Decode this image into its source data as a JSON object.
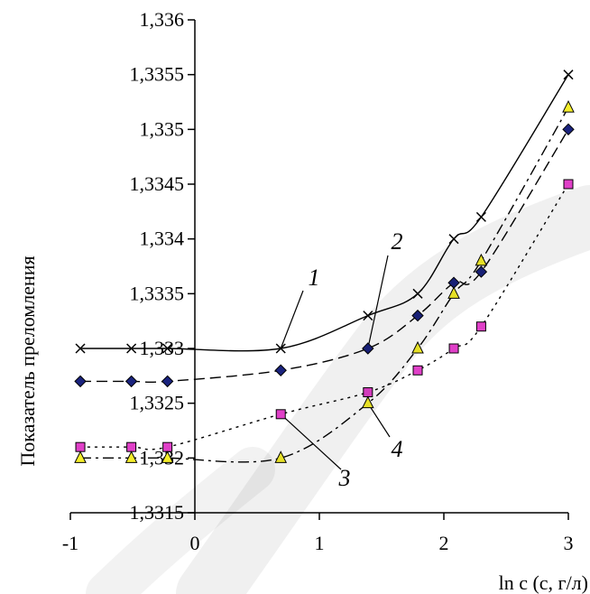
{
  "chart_data": {
    "type": "line",
    "title": "",
    "xlabel": "ln c (c, г/л)",
    "ylabel": "Показатель преломления",
    "xlim": [
      -1,
      3
    ],
    "ylim": [
      1.3315,
      1.336
    ],
    "x_ticks": [
      -1,
      0,
      1,
      2,
      3
    ],
    "x_tick_labels": [
      "-1",
      "0",
      "1",
      "2",
      "3"
    ],
    "y_ticks": [
      1.3315,
      1.332,
      1.3325,
      1.333,
      1.3335,
      1.334,
      1.3345,
      1.335,
      1.3355,
      1.336
    ],
    "y_tick_labels": [
      "1,3315",
      "1,332",
      "1,3325",
      "1,333",
      "1,3335",
      "1,334",
      "1,3345",
      "1,335",
      "1,3355",
      "1,336"
    ],
    "grid": false,
    "series": [
      {
        "name": "1",
        "marker": "x",
        "line_style": "solid",
        "marker_color": "#000000",
        "x": [
          -0.92,
          -0.51,
          -0.22,
          0.69,
          1.39,
          1.79,
          2.08,
          2.3,
          3.0
        ],
        "y": [
          1.333,
          1.333,
          1.333,
          1.333,
          1.3333,
          1.3335,
          1.334,
          1.3342,
          1.3355
        ]
      },
      {
        "name": "2",
        "marker": "diamond",
        "line_style": "dashed",
        "marker_color": "#1a237e",
        "x": [
          -0.92,
          -0.51,
          -0.22,
          0.69,
          1.39,
          1.79,
          2.08,
          2.3,
          3.0
        ],
        "y": [
          1.3327,
          1.3327,
          1.3327,
          1.3328,
          1.333,
          1.3333,
          1.3336,
          1.3337,
          1.335
        ]
      },
      {
        "name": "3",
        "marker": "square",
        "line_style": "dotted",
        "marker_color": "#e040c8",
        "x": [
          -0.92,
          -0.51,
          -0.22,
          0.69,
          1.39,
          1.79,
          2.08,
          2.3,
          3.0
        ],
        "y": [
          1.3321,
          1.3321,
          1.3321,
          1.3324,
          1.3326,
          1.3328,
          1.333,
          1.3332,
          1.3345
        ]
      },
      {
        "name": "4",
        "marker": "triangle",
        "line_style": "dash-dot",
        "marker_color": "#f5ee2a",
        "x": [
          -0.92,
          -0.51,
          -0.22,
          0.69,
          1.39,
          1.79,
          2.08,
          2.3,
          3.0
        ],
        "y": [
          1.332,
          1.332,
          1.332,
          1.332,
          1.3325,
          1.333,
          1.3335,
          1.3338,
          1.3352
        ]
      }
    ]
  }
}
